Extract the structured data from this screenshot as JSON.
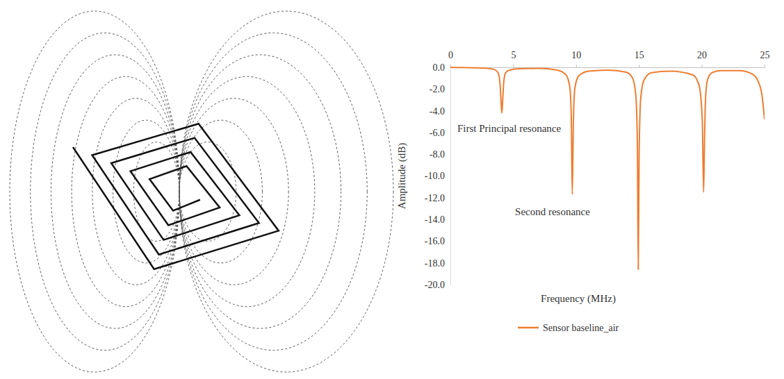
{
  "chart_data": {
    "type": "line",
    "x_label": "Frequency (MHz)",
    "y_label": "Amplitude (dB)",
    "annotations": [
      "First Principal resonance",
      "Second resonance"
    ],
    "x": [
      0,
      1,
      2,
      3,
      3.5,
      3.8,
      3.95,
      4.05,
      4.1,
      4.15,
      4.25,
      4.4,
      4.7,
      5.5,
      7,
      8.5,
      9.2,
      9.5,
      9.62,
      9.7,
      9.78,
      9.9,
      10.2,
      11,
      12.5,
      14,
      14.5,
      14.75,
      14.88,
      14.95,
      15.02,
      15.15,
      15.4,
      16,
      17.5,
      19.3,
      19.8,
      20.05,
      20.15,
      20.22,
      20.3,
      20.45,
      20.8,
      21.5,
      23,
      24,
      24.5,
      24.8,
      25
    ],
    "series": [
      {
        "name": "Sensor baseline_air",
        "color": "#ed7d31",
        "line_style": "solid",
        "values": [
          0,
          -0.02,
          -0.04,
          -0.1,
          -0.2,
          -0.5,
          -1.5,
          -3.5,
          -4.2,
          -3.3,
          -1.3,
          -0.5,
          -0.25,
          -0.12,
          -0.1,
          -0.25,
          -0.7,
          -1.8,
          -4.5,
          -11.7,
          -5.5,
          -2,
          -0.8,
          -0.35,
          -0.25,
          -0.45,
          -1,
          -2.5,
          -7,
          -18.6,
          -8,
          -2.8,
          -1.2,
          -0.5,
          -0.35,
          -0.7,
          -1.7,
          -5,
          -11.5,
          -7,
          -3,
          -1.2,
          -0.5,
          -0.3,
          -0.3,
          -0.6,
          -1.3,
          -2.6,
          -4.8
        ]
      }
    ],
    "xlim": [
      0,
      25
    ],
    "xticks": [
      0,
      5,
      10,
      15,
      20,
      25
    ],
    "ylim": [
      -20,
      0
    ],
    "yticks": [
      {
        "value": 0,
        "label": "0.0"
      },
      {
        "value": -2,
        "label": "-2.0"
      },
      {
        "value": -4,
        "label": "-4.0"
      },
      {
        "value": -6,
        "label": "-6.0"
      },
      {
        "value": -8,
        "label": "-8.0"
      },
      {
        "value": -10,
        "label": "-10.0"
      },
      {
        "value": -12,
        "label": "-12.0"
      },
      {
        "value": -14,
        "label": "-14.0"
      },
      {
        "value": -16,
        "label": "-16.0"
      },
      {
        "value": -18,
        "label": "-18.0"
      },
      {
        "value": -20,
        "label": "-20.0"
      }
    ],
    "grid": false,
    "legend": "bottom"
  }
}
